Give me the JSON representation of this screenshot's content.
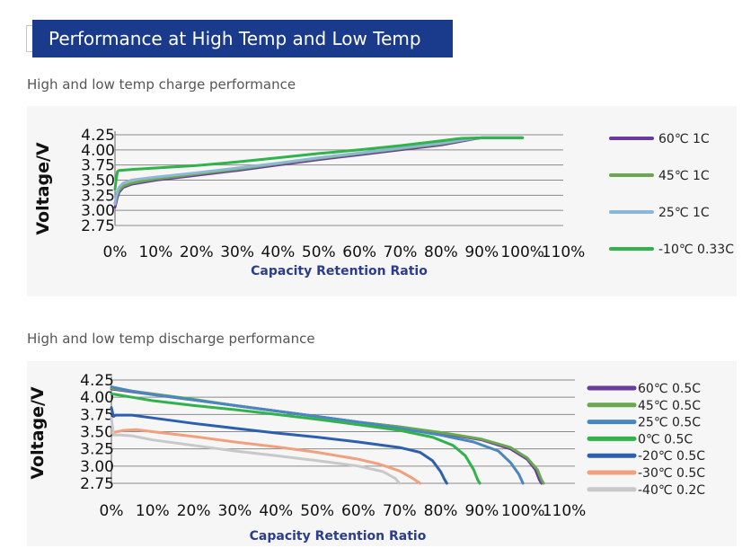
{
  "header": {
    "title": "Performance at High Temp and Low Temp"
  },
  "sections": [
    {
      "title": "High and low temp charge performance"
    },
    {
      "title": "High and low temp discharge performance"
    }
  ],
  "chart_data": [
    {
      "type": "line",
      "title": "High and low temp charge performance",
      "xlabel": "Capacity Retention Ratio",
      "ylabel": "Voltage/V",
      "x_ticks": [
        "0%",
        "10%",
        "20%",
        "30%",
        "40%",
        "50%",
        "60%",
        "70%",
        "80%",
        "90%",
        "100%",
        "110%"
      ],
      "y_ticks": [
        "4.25",
        "4.00",
        "3.75",
        "3.50",
        "3.25",
        "3.00",
        "2.75"
      ],
      "xlim": [
        0,
        110
      ],
      "ylim": [
        2.75,
        4.25
      ],
      "grid": true,
      "legend_position": "right",
      "series": [
        {
          "name": "60℃ 1C",
          "color": "#6a3a9c",
          "points": [
            [
              0,
              3.05
            ],
            [
              0.5,
              3.2
            ],
            [
              1,
              3.3
            ],
            [
              2,
              3.38
            ],
            [
              4,
              3.43
            ],
            [
              10,
              3.5
            ],
            [
              20,
              3.58
            ],
            [
              30,
              3.66
            ],
            [
              40,
              3.75
            ],
            [
              50,
              3.84
            ],
            [
              60,
              3.92
            ],
            [
              70,
              4.0
            ],
            [
              80,
              4.08
            ],
            [
              88,
              4.18
            ],
            [
              90,
              4.2
            ],
            [
              95,
              4.2
            ],
            [
              100,
              4.2
            ]
          ]
        },
        {
          "name": "45℃ 1C",
          "color": "#6aa84f",
          "points": [
            [
              0,
              3.12
            ],
            [
              0.5,
              3.25
            ],
            [
              1,
              3.33
            ],
            [
              2,
              3.4
            ],
            [
              4,
              3.45
            ],
            [
              10,
              3.52
            ],
            [
              20,
              3.6
            ],
            [
              30,
              3.68
            ],
            [
              40,
              3.77
            ],
            [
              50,
              3.86
            ],
            [
              60,
              3.94
            ],
            [
              70,
              4.02
            ],
            [
              80,
              4.1
            ],
            [
              88,
              4.19
            ],
            [
              90,
              4.2
            ],
            [
              95,
              4.2
            ],
            [
              100,
              4.2
            ]
          ]
        },
        {
          "name": "25℃ 1C",
          "color": "#8fb7d3",
          "points": [
            [
              0,
              3.1
            ],
            [
              0.5,
              3.3
            ],
            [
              1,
              3.38
            ],
            [
              2,
              3.45
            ],
            [
              4,
              3.5
            ],
            [
              10,
              3.55
            ],
            [
              20,
              3.62
            ],
            [
              30,
              3.7
            ],
            [
              40,
              3.78
            ],
            [
              50,
              3.87
            ],
            [
              60,
              3.95
            ],
            [
              70,
              4.03
            ],
            [
              80,
              4.11
            ],
            [
              88,
              4.19
            ],
            [
              90,
              4.2
            ],
            [
              95,
              4.2
            ],
            [
              100,
              4.2
            ]
          ]
        },
        {
          "name": "-10℃ 0.33C",
          "color": "#2fb34a",
          "points": [
            [
              0,
              3.35
            ],
            [
              0.3,
              3.52
            ],
            [
              0.6,
              3.64
            ],
            [
              1,
              3.66
            ],
            [
              5,
              3.68
            ],
            [
              10,
              3.7
            ],
            [
              20,
              3.74
            ],
            [
              30,
              3.8
            ],
            [
              40,
              3.87
            ],
            [
              50,
              3.94
            ],
            [
              60,
              4.0
            ],
            [
              70,
              4.07
            ],
            [
              80,
              4.15
            ],
            [
              85,
              4.19
            ],
            [
              90,
              4.2
            ],
            [
              95,
              4.2
            ],
            [
              100,
              4.2
            ]
          ]
        }
      ]
    },
    {
      "type": "line",
      "title": "High and low temp discharge performance",
      "xlabel": "Capacity Retention Ratio",
      "ylabel": "Voltage/V",
      "x_ticks": [
        "0%",
        "10%",
        "20%",
        "30%",
        "40%",
        "50%",
        "60%",
        "70%",
        "80%",
        "90%",
        "100%",
        "110%"
      ],
      "y_ticks": [
        "4.25",
        "4.00",
        "3.75",
        "3.50",
        "3.25",
        "3.00",
        "2.75"
      ],
      "xlim": [
        0,
        110
      ],
      "ylim": [
        2.75,
        4.25
      ],
      "grid": true,
      "legend_position": "right",
      "series": [
        {
          "name": "60℃ 0.5C",
          "color": "#6a3a9c",
          "points": [
            [
              0,
              4.12
            ],
            [
              5,
              4.08
            ],
            [
              10,
              4.04
            ],
            [
              20,
              3.96
            ],
            [
              30,
              3.88
            ],
            [
              40,
              3.8
            ],
            [
              50,
              3.72
            ],
            [
              60,
              3.64
            ],
            [
              70,
              3.57
            ],
            [
              80,
              3.48
            ],
            [
              90,
              3.38
            ],
            [
              97,
              3.25
            ],
            [
              101,
              3.1
            ],
            [
              103,
              2.95
            ],
            [
              104,
              2.8
            ],
            [
              104.5,
              2.75
            ]
          ]
        },
        {
          "name": "45℃ 0.5C",
          "color": "#6aa84f",
          "points": [
            [
              0,
              4.13
            ],
            [
              5,
              4.09
            ],
            [
              10,
              4.05
            ],
            [
              20,
              3.97
            ],
            [
              30,
              3.88
            ],
            [
              40,
              3.8
            ],
            [
              50,
              3.72
            ],
            [
              60,
              3.64
            ],
            [
              70,
              3.57
            ],
            [
              80,
              3.49
            ],
            [
              90,
              3.39
            ],
            [
              97,
              3.27
            ],
            [
              101,
              3.12
            ],
            [
              103.5,
              2.95
            ],
            [
              104.5,
              2.8
            ],
            [
              105,
              2.75
            ]
          ]
        },
        {
          "name": "25℃ 0.5C",
          "color": "#4a86c0",
          "points": [
            [
              0,
              4.15
            ],
            [
              5,
              4.09
            ],
            [
              10,
              4.04
            ],
            [
              20,
              3.96
            ],
            [
              30,
              3.88
            ],
            [
              40,
              3.8
            ],
            [
              50,
              3.72
            ],
            [
              60,
              3.64
            ],
            [
              70,
              3.55
            ],
            [
              80,
              3.45
            ],
            [
              88,
              3.35
            ],
            [
              94,
              3.22
            ],
            [
              97,
              3.05
            ],
            [
              99,
              2.88
            ],
            [
              100,
              2.75
            ]
          ]
        },
        {
          "name": "0℃ 0.5C",
          "color": "#2fb34a",
          "points": [
            [
              0,
              4.05
            ],
            [
              5,
              4.0
            ],
            [
              10,
              3.95
            ],
            [
              20,
              3.88
            ],
            [
              30,
              3.82
            ],
            [
              40,
              3.75
            ],
            [
              50,
              3.68
            ],
            [
              60,
              3.6
            ],
            [
              70,
              3.52
            ],
            [
              78,
              3.42
            ],
            [
              83,
              3.3
            ],
            [
              86,
              3.15
            ],
            [
              88,
              2.95
            ],
            [
              89,
              2.8
            ],
            [
              89.5,
              2.75
            ]
          ]
        },
        {
          "name": "-20℃ 0.5C",
          "color": "#2d5fb0",
          "points": [
            [
              0,
              3.85
            ],
            [
              0.5,
              3.72
            ],
            [
              1,
              3.74
            ],
            [
              5,
              3.74
            ],
            [
              10,
              3.7
            ],
            [
              20,
              3.62
            ],
            [
              30,
              3.55
            ],
            [
              40,
              3.48
            ],
            [
              50,
              3.42
            ],
            [
              60,
              3.35
            ],
            [
              70,
              3.27
            ],
            [
              75,
              3.2
            ],
            [
              78,
              3.08
            ],
            [
              80,
              2.92
            ],
            [
              81,
              2.8
            ],
            [
              81.5,
              2.75
            ]
          ]
        },
        {
          "name": "-30℃ 0.5C",
          "color": "#f0a07c",
          "points": [
            [
              0,
              3.48
            ],
            [
              3,
              3.52
            ],
            [
              6,
              3.53
            ],
            [
              10,
              3.5
            ],
            [
              20,
              3.43
            ],
            [
              30,
              3.35
            ],
            [
              40,
              3.28
            ],
            [
              50,
              3.2
            ],
            [
              60,
              3.1
            ],
            [
              65,
              3.03
            ],
            [
              70,
              2.93
            ],
            [
              73,
              2.83
            ],
            [
              75,
              2.75
            ]
          ]
        },
        {
          "name": "-40℃ 0.2C",
          "color": "#c8c8c8",
          "points": [
            [
              0,
              3.7
            ],
            [
              0.5,
              3.45
            ],
            [
              2,
              3.45
            ],
            [
              5,
              3.44
            ],
            [
              10,
              3.38
            ],
            [
              20,
              3.3
            ],
            [
              30,
              3.22
            ],
            [
              40,
              3.15
            ],
            [
              50,
              3.08
            ],
            [
              60,
              3.0
            ],
            [
              66,
              2.92
            ],
            [
              69,
              2.82
            ],
            [
              70,
              2.75
            ]
          ]
        }
      ]
    }
  ]
}
